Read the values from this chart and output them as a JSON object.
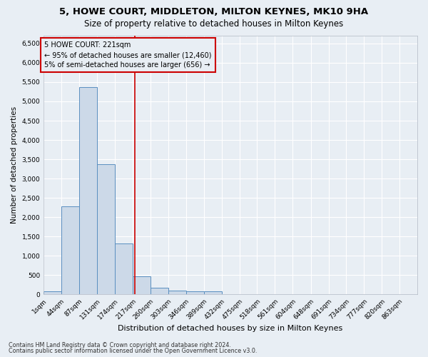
{
  "title": "5, HOWE COURT, MIDDLETON, MILTON KEYNES, MK10 9HA",
  "subtitle": "Size of property relative to detached houses in Milton Keynes",
  "xlabel": "Distribution of detached houses by size in Milton Keynes",
  "ylabel": "Number of detached properties",
  "bin_edges": [
    1,
    44,
    87,
    131,
    174,
    217,
    260,
    303,
    346,
    389,
    432,
    475,
    518,
    561,
    604,
    648,
    691,
    734,
    777,
    820,
    863
  ],
  "bar_heights": [
    75,
    2275,
    5375,
    3375,
    1325,
    475,
    175,
    100,
    75,
    75,
    0,
    0,
    0,
    0,
    0,
    0,
    0,
    0,
    0,
    0
  ],
  "bar_color": "#ccd9e8",
  "bar_edge_color": "#5a8fc0",
  "property_value": 221,
  "vline_color": "#cc0000",
  "annotation_text": "5 HOWE COURT: 221sqm\n← 95% of detached houses are smaller (12,460)\n5% of semi-detached houses are larger (656) →",
  "annotation_box_color": "#cc0000",
  "annotation_text_color": "#000000",
  "ylim": [
    0,
    6700
  ],
  "yticks": [
    0,
    500,
    1000,
    1500,
    2000,
    2500,
    3000,
    3500,
    4000,
    4500,
    5000,
    5500,
    6000,
    6500
  ],
  "footer1": "Contains HM Land Registry data © Crown copyright and database right 2024.",
  "footer2": "Contains public sector information licensed under the Open Government Licence v3.0.",
  "bg_color": "#e8eef4",
  "plot_bg_color": "#e8eef4",
  "grid_color": "#ffffff",
  "title_fontsize": 9.5,
  "subtitle_fontsize": 8.5,
  "xlabel_fontsize": 8,
  "ylabel_fontsize": 7.5,
  "tick_fontsize": 6.5,
  "footer_fontsize": 5.8,
  "ann_fontsize": 7.0
}
